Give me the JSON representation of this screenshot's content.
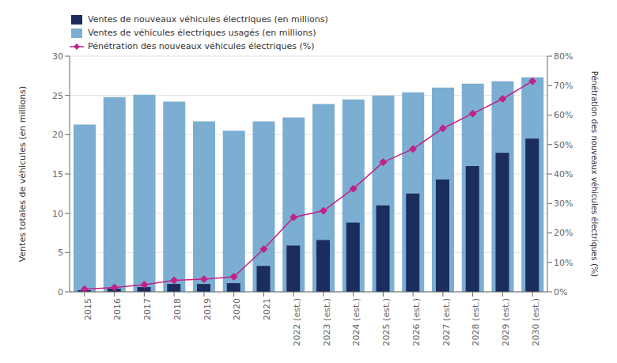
{
  "chart_data": {
    "type": "bar",
    "categories": [
      "2015",
      "2016",
      "2017",
      "2018",
      "2019",
      "2020",
      "2021",
      "2022 (est.)",
      "2023 (est.)",
      "2024 (est.)",
      "2025 (est.)",
      "2026 (est.)",
      "2027 (est.)",
      "2028 (est.)",
      "2029 (est.)",
      "2030 (est.)"
    ],
    "series": [
      {
        "name": "Ventes de nouveaux véhicules électriques (en millions)",
        "type": "bar",
        "color": "#1b2d5e",
        "values": [
          0.2,
          0.4,
          0.6,
          1.0,
          1.0,
          1.1,
          3.3,
          5.9,
          6.6,
          8.8,
          11.0,
          12.5,
          14.3,
          16.0,
          17.7,
          19.5
        ]
      },
      {
        "name": "Ventes de véhicules électriques usagés (en millions)",
        "type": "bar",
        "color": "#7baed0",
        "values": [
          21.3,
          24.8,
          25.1,
          24.2,
          21.7,
          20.5,
          21.7,
          22.2,
          23.9,
          24.5,
          25.0,
          25.4,
          26.0,
          26.5,
          26.8,
          27.3
        ]
      },
      {
        "name": "Pénétration des nouveaux véhicules électriques (%)",
        "type": "line",
        "axis": "y2",
        "marker": "diamond",
        "color": "#c0228a",
        "values": [
          0.9,
          1.5,
          2.4,
          3.9,
          4.3,
          5.1,
          14.5,
          25.3,
          27.5,
          35.0,
          44.0,
          48.5,
          55.5,
          60.5,
          65.5,
          71.5
        ]
      }
    ],
    "ylabel": "Ventes totales de véhicules (en millions)",
    "y2label": "Pénétration des nouveaux véhicules électriques (%)",
    "ylim": [
      0,
      30
    ],
    "yticks": [
      0,
      5,
      10,
      15,
      20,
      25,
      30
    ],
    "y2lim": [
      0,
      80
    ],
    "y2ticks": [
      {
        "value": 0,
        "label": "0%"
      },
      {
        "value": 10,
        "label": "10%"
      },
      {
        "value": 20,
        "label": "20%"
      },
      {
        "value": 30,
        "label": "30%"
      },
      {
        "value": 40,
        "label": "40%"
      },
      {
        "value": 50,
        "label": "50%"
      },
      {
        "value": 60,
        "label": "60%"
      },
      {
        "value": 70,
        "label": "70%"
      },
      {
        "value": 80,
        "label": "80%"
      }
    ],
    "grid": true,
    "legend": "upper left"
  }
}
